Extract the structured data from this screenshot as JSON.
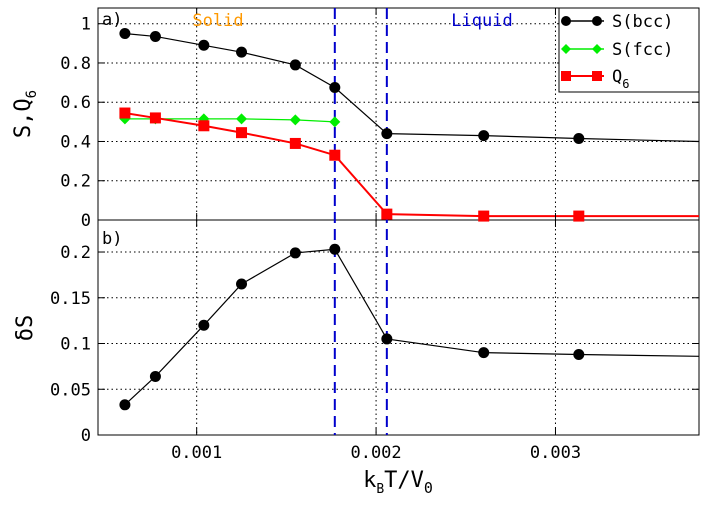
{
  "chart_data": [
    {
      "panel": "a)",
      "type": "line",
      "xlim": [
        0.00045,
        0.0038
      ],
      "ylim": [
        0,
        1.08
      ],
      "ylabel_main": "S,Q",
      "ylabel_sub": "6",
      "yticks": [
        0,
        0.2,
        0.4,
        0.6,
        0.8,
        1
      ],
      "ytick_labels": [
        "0",
        "0.2",
        "0.4",
        "0.6",
        "0.8",
        "1"
      ],
      "region_labels": {
        "solid": {
          "text": "Solid",
          "color": "#ff9900"
        },
        "liquid": {
          "text": "Liquid",
          "color": "#0000cc"
        }
      },
      "series": [
        {
          "name": "S(bcc)",
          "color": "#000000",
          "marker": "circle",
          "x": [
            0.0006,
            0.00077,
            0.00104,
            0.00125,
            0.00155,
            0.00177,
            0.00206,
            0.0026,
            0.00313
          ],
          "y": [
            0.95,
            0.935,
            0.89,
            0.855,
            0.79,
            0.675,
            0.44,
            0.43,
            0.415
          ],
          "tail_to": 0.4
        },
        {
          "name": "S(fcc)",
          "color": "#00ee00",
          "marker": "diamond",
          "x": [
            0.0006,
            0.00077,
            0.00104,
            0.00125,
            0.00155,
            0.00177
          ],
          "y": [
            0.515,
            0.515,
            0.515,
            0.515,
            0.51,
            0.5
          ]
        },
        {
          "name": "Q",
          "name_sub": "6",
          "color": "#ff0000",
          "marker": "square",
          "x": [
            0.0006,
            0.00077,
            0.00104,
            0.00125,
            0.00155,
            0.00177,
            0.00206,
            0.0026,
            0.00313
          ],
          "y": [
            0.545,
            0.52,
            0.48,
            0.445,
            0.39,
            0.33,
            0.03,
            0.02,
            0.02
          ],
          "tail_to": 0.02
        }
      ]
    },
    {
      "panel": "b)",
      "type": "line",
      "xlim": [
        0.00045,
        0.0038
      ],
      "ylim": [
        0,
        0.235
      ],
      "ylabel": "δS",
      "yticks": [
        0,
        0.05,
        0.1,
        0.15,
        0.2
      ],
      "ytick_labels": [
        "0",
        "0.05",
        "0.1",
        "0.15",
        "0.2"
      ],
      "series": [
        {
          "name": "δS",
          "color": "#000000",
          "marker": "circle",
          "x": [
            0.0006,
            0.00077,
            0.00104,
            0.00125,
            0.00155,
            0.00177,
            0.00206,
            0.0026,
            0.00313
          ],
          "y": [
            0.033,
            0.064,
            0.12,
            0.165,
            0.199,
            0.203,
            0.105,
            0.09,
            0.088
          ],
          "tail_to": 0.086
        }
      ]
    }
  ],
  "shared_x": {
    "xticks": [
      0.001,
      0.002,
      0.003
    ],
    "xtick_labels": [
      "0.001",
      "0.002",
      "0.003"
    ],
    "xlabel_k": "k",
    "xlabel_k_sub": "B",
    "xlabel_mid": "T/V",
    "xlabel_v_sub": "0"
  },
  "transition_lines": [
    0.00177,
    0.00206
  ]
}
